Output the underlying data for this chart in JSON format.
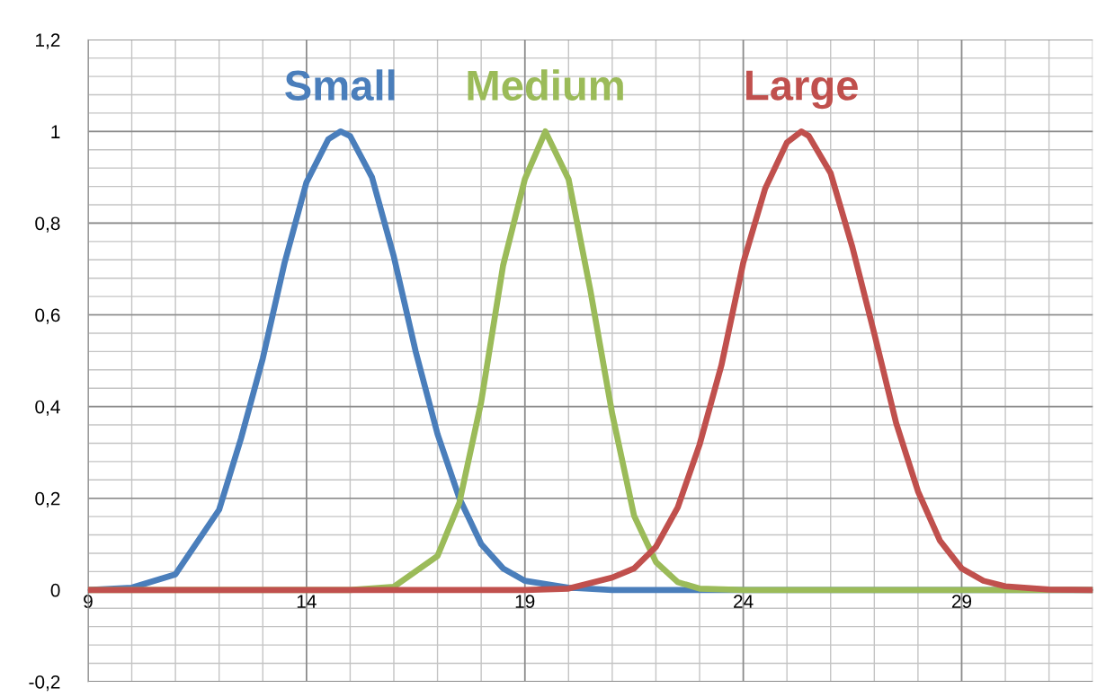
{
  "chart_data": {
    "type": "line",
    "xlim": [
      9,
      32
    ],
    "xticks": [
      9,
      14,
      19,
      24,
      29
    ],
    "ylim": [
      -0.2,
      1.2
    ],
    "yticks": [
      {
        "value": 1.2,
        "label": "1,2"
      },
      1,
      {
        "value": 0.8,
        "label": "0,8"
      },
      {
        "value": 0.6,
        "label": "0,6"
      },
      {
        "value": 0.4,
        "label": "0,4"
      },
      {
        "value": 0.2,
        "label": "0,2"
      },
      0,
      {
        "value": -0.2,
        "label": "-0,2"
      }
    ],
    "grid": true,
    "marker": "none",
    "line_style": "solid",
    "series": [
      {
        "name": "Small",
        "color": "#4a7ebb",
        "x": [
          9,
          10,
          11,
          12,
          12.5,
          13,
          13.5,
          14,
          14.5,
          14.78,
          15,
          15.5,
          16,
          16.5,
          17,
          17.5,
          18,
          18.5,
          19,
          20,
          21,
          32
        ],
        "values": [
          0,
          0.005,
          0.034,
          0.175,
          0.33,
          0.505,
          0.714,
          0.889,
          0.983,
          1,
          0.99,
          0.9,
          0.727,
          0.52,
          0.34,
          0.2,
          0.1,
          0.047,
          0.02,
          0.005,
          0,
          0
        ]
      },
      {
        "name": "Medium",
        "color": "#9bbb59",
        "x": [
          9,
          15,
          16,
          17,
          17.5,
          18,
          18.5,
          19,
          19.47,
          20,
          20.5,
          21,
          21.5,
          22,
          22.5,
          23,
          24,
          32
        ],
        "values": [
          0,
          0,
          0.007,
          0.074,
          0.19,
          0.41,
          0.707,
          0.896,
          1,
          0.896,
          0.653,
          0.384,
          0.162,
          0.061,
          0.017,
          0.003,
          0,
          0
        ]
      },
      {
        "name": "Large",
        "color": "#c0504d",
        "x": [
          9,
          19,
          20,
          21,
          21.5,
          22,
          22.5,
          23,
          23.5,
          24,
          24.5,
          25,
          25.33,
          25.5,
          26,
          26.5,
          27,
          27.5,
          28,
          28.5,
          29,
          29.5,
          30,
          31,
          32
        ],
        "values": [
          0,
          0,
          0.003,
          0.027,
          0.047,
          0.094,
          0.18,
          0.317,
          0.49,
          0.714,
          0.875,
          0.976,
          1,
          0.99,
          0.909,
          0.747,
          0.559,
          0.364,
          0.215,
          0.108,
          0.047,
          0.02,
          0.008,
          0.001,
          0
        ]
      }
    ]
  }
}
